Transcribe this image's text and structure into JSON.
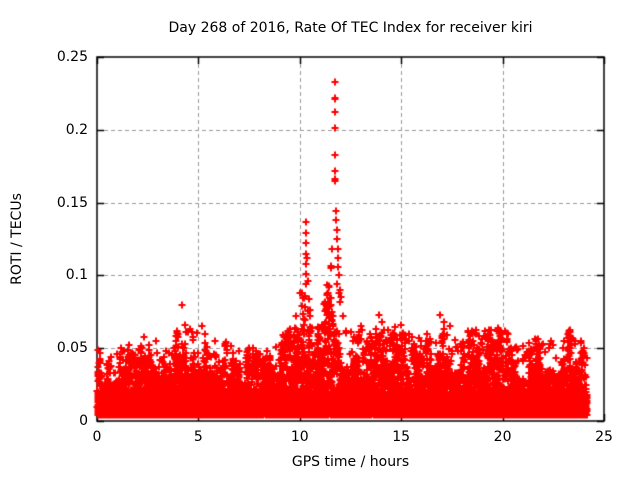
{
  "figure": {
    "background": "#ffffff",
    "text_color": "#000000"
  },
  "chart_data": {
    "type": "scatter",
    "title": "Day 268 of 2016, Rate Of TEC Index for receiver kiri",
    "xlabel": "GPS time / hours",
    "ylabel": "ROTI / TECUs",
    "xlim": [
      0,
      25
    ],
    "ylim": [
      0,
      0.25
    ],
    "xticks": [
      0,
      5,
      10,
      15,
      20,
      25
    ],
    "xtick_labels": [
      "0",
      "5",
      "10",
      "15",
      "20",
      "25"
    ],
    "yticks": [
      0,
      0.05,
      0.1,
      0.15,
      0.2,
      0.25
    ],
    "ytick_labels": [
      "0",
      "0.05",
      "0.1",
      "0.15",
      "0.2",
      "0.25"
    ],
    "grid": {
      "show": true,
      "style": "dashed",
      "color": "#9a9a9a"
    },
    "axis_color": "#000000",
    "legend": "none",
    "marker": {
      "shape": "plus",
      "color": "#ff0000",
      "size": 7,
      "stroke": 2
    },
    "data_x_range": [
      0.02,
      24.15
    ],
    "band": {
      "description": "dense scatter band of ROTI noise; 'top' is the bulk upper envelope per 0.5 h bin, 'base' the lower edge",
      "x_step": 0.5,
      "base": 0.004,
      "top": [
        0.04,
        0.034,
        0.036,
        0.04,
        0.038,
        0.042,
        0.036,
        0.034,
        0.048,
        0.05,
        0.046,
        0.04,
        0.038,
        0.042,
        0.038,
        0.04,
        0.038,
        0.036,
        0.042,
        0.055,
        0.07,
        0.06,
        0.05,
        0.09,
        0.055,
        0.048,
        0.05,
        0.052,
        0.055,
        0.048,
        0.05,
        0.046,
        0.044,
        0.052,
        0.058,
        0.048,
        0.046,
        0.052,
        0.048,
        0.05,
        0.055,
        0.044,
        0.04,
        0.042,
        0.044,
        0.04,
        0.042,
        0.052,
        0.04
      ]
    },
    "peaks": [
      [
        0.15,
        0.047
      ],
      [
        0.7,
        0.044
      ],
      [
        1.2,
        0.05
      ],
      [
        1.6,
        0.052
      ],
      [
        2.3,
        0.058
      ],
      [
        2.55,
        0.052
      ],
      [
        2.9,
        0.055
      ],
      [
        3.4,
        0.048
      ],
      [
        4.0,
        0.06
      ],
      [
        4.2,
        0.08
      ],
      [
        4.35,
        0.066
      ],
      [
        4.6,
        0.063
      ],
      [
        5.2,
        0.065
      ],
      [
        5.35,
        0.06
      ],
      [
        5.8,
        0.055
      ],
      [
        6.3,
        0.052
      ],
      [
        7.0,
        0.048
      ],
      [
        7.7,
        0.05
      ],
      [
        8.4,
        0.048
      ],
      [
        9.2,
        0.058
      ],
      [
        9.5,
        0.063
      ],
      [
        9.8,
        0.072
      ],
      [
        10.0,
        0.088
      ],
      [
        10.18,
        0.062
      ],
      [
        10.22,
        0.07
      ],
      [
        10.25,
        0.078
      ],
      [
        10.28,
        0.086
      ],
      [
        10.3,
        0.094
      ],
      [
        10.32,
        0.101
      ],
      [
        10.29,
        0.108
      ],
      [
        10.31,
        0.115
      ],
      [
        10.33,
        0.122
      ],
      [
        10.3,
        0.129
      ],
      [
        10.31,
        0.137
      ],
      [
        10.36,
        0.112
      ],
      [
        10.4,
        0.096
      ],
      [
        10.44,
        0.084
      ],
      [
        10.5,
        0.072
      ],
      [
        10.58,
        0.064
      ],
      [
        10.9,
        0.06
      ],
      [
        11.1,
        0.066
      ],
      [
        11.3,
        0.08
      ],
      [
        11.45,
        0.092
      ],
      [
        11.55,
        0.105
      ],
      [
        11.6,
        0.118
      ],
      [
        11.72,
        0.222
      ],
      [
        11.74,
        0.233
      ],
      [
        11.74,
        0.221
      ],
      [
        11.73,
        0.212
      ],
      [
        11.74,
        0.201
      ],
      [
        11.72,
        0.183
      ],
      [
        11.73,
        0.172
      ],
      [
        11.74,
        0.166
      ],
      [
        11.76,
        0.165
      ],
      [
        11.78,
        0.144
      ],
      [
        11.8,
        0.138
      ],
      [
        11.82,
        0.131
      ],
      [
        11.84,
        0.125
      ],
      [
        11.86,
        0.118
      ],
      [
        11.88,
        0.112
      ],
      [
        11.9,
        0.106
      ],
      [
        11.92,
        0.1
      ],
      [
        11.85,
        0.094
      ],
      [
        11.94,
        0.088
      ],
      [
        11.96,
        0.082
      ],
      [
        12.0,
        0.09
      ],
      [
        12.05,
        0.085
      ],
      [
        12.15,
        0.072
      ],
      [
        12.3,
        0.062
      ],
      [
        12.6,
        0.055
      ],
      [
        13.0,
        0.065
      ],
      [
        13.5,
        0.058
      ],
      [
        13.9,
        0.073
      ],
      [
        14.05,
        0.068
      ],
      [
        14.5,
        0.057
      ],
      [
        15.0,
        0.066
      ],
      [
        15.4,
        0.06
      ],
      [
        16.2,
        0.055
      ],
      [
        16.9,
        0.073
      ],
      [
        17.1,
        0.068
      ],
      [
        17.4,
        0.065
      ],
      [
        18.0,
        0.052
      ],
      [
        18.7,
        0.06
      ],
      [
        19.3,
        0.055
      ],
      [
        20.1,
        0.062
      ],
      [
        20.6,
        0.05
      ],
      [
        21.5,
        0.048
      ],
      [
        22.4,
        0.055
      ],
      [
        23.0,
        0.05
      ],
      [
        23.42,
        0.057
      ],
      [
        23.48,
        0.056
      ],
      [
        23.55,
        0.055
      ],
      [
        24.0,
        0.05
      ]
    ],
    "render": {
      "seed": 268,
      "bulk_points": 9000,
      "floor_points": 4500,
      "mid_points": 260
    }
  }
}
